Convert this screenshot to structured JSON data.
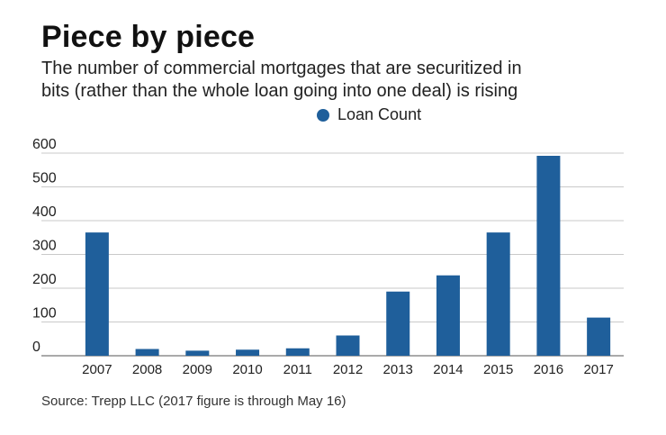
{
  "header": {
    "title": "Piece by piece",
    "subtitle_lines": [
      "The number of commercial mortgages that are securitized in",
      "bits (rather than the whole loan going into one deal) is rising"
    ]
  },
  "footer": {
    "source": "Source: Trepp LLC (2017 figure is through May 16)"
  },
  "colors": {
    "bar": "#1f5f9b",
    "grid": "#c9c9c9",
    "baseline": "#777777"
  },
  "chart_data": {
    "type": "bar",
    "title": "Piece by piece",
    "subtitle": "The number of commercial mortgages that are securitized in bits (rather than the whole loan going into one deal) is rising",
    "xlabel": "",
    "ylabel": "",
    "categories": [
      "2007",
      "2008",
      "2009",
      "2010",
      "2011",
      "2012",
      "2013",
      "2014",
      "2015",
      "2016",
      "2017"
    ],
    "series": [
      {
        "name": "Loan Count",
        "values": [
          365,
          20,
          15,
          18,
          22,
          60,
          190,
          238,
          365,
          592,
          113
        ]
      }
    ],
    "ylim": [
      0,
      600
    ],
    "yticks": [
      0,
      100,
      200,
      300,
      400,
      500,
      600
    ],
    "grid": true,
    "legend": "top-center"
  }
}
